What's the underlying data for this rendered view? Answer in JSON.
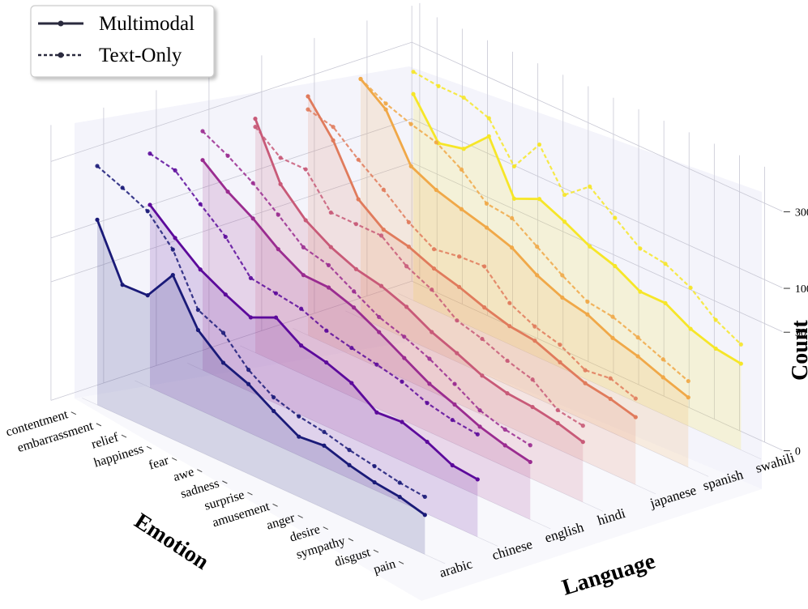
{
  "chart_data": {
    "type": "line",
    "projection": "3d",
    "zscale": "log",
    "xlabel": "Emotion",
    "ylabel": "Language",
    "zlabel": "Count",
    "categories": [
      "contentment",
      "embarrassment",
      "relief",
      "happiness",
      "fear",
      "awe",
      "sadness",
      "surprise",
      "amusement",
      "anger",
      "desire",
      "sympathy",
      "disgust",
      "pain"
    ],
    "languages": [
      "arabic",
      "chinese",
      "english",
      "hindi",
      "japanese",
      "spanish",
      "swahili"
    ],
    "ztick_values": [
      0,
      50,
      100,
      300
    ],
    "ztick_labels": [
      "0",
      "50",
      "100",
      "300"
    ],
    "legend": {
      "position": "top-left",
      "entries": [
        {
          "label": "Multimodal",
          "style": "solid"
        },
        {
          "label": "Text-Only",
          "style": "dashed"
        }
      ]
    },
    "colors": [
      "#1a1a78",
      "#5c0a9b",
      "#9a2c90",
      "#c85a78",
      "#e07b5c",
      "#f0a848",
      "#f6e628"
    ],
    "series": [
      {
        "name": "arabic",
        "multimodal": [
          140,
          62,
          63,
          103,
          52,
          36,
          30,
          22,
          16,
          17,
          14,
          12,
          11,
          9
        ],
        "text_only": [
          300,
          260,
          220,
          150,
          72,
          60,
          39,
          29,
          25,
          23,
          20,
          18,
          16,
          15
        ]
      },
      {
        "name": "chinese",
        "multimodal": [
          135,
          98,
          72,
          58,
          48,
          58,
          44,
          40,
          34,
          24,
          25,
          21,
          16,
          15
        ],
        "text_only": [
          280,
          260,
          190,
          140,
          90,
          85,
          80,
          68,
          62,
          57,
          52,
          44,
          40,
          38
        ]
      },
      {
        "name": "english",
        "multimodal": [
          200,
          150,
          120,
          90,
          72,
          71,
          62,
          50,
          39,
          30,
          25,
          20,
          17,
          15
        ],
        "text_only": [
          300,
          250,
          200,
          150,
          110,
          100,
          80,
          64,
          56,
          47,
          37,
          28,
          24,
          22
        ]
      },
      {
        "name": "hindi",
        "multimodal": [
          280,
          130,
          90,
          71,
          60,
          55,
          47,
          37,
          31,
          25,
          22,
          21,
          19,
          16
        ],
        "text_only": [
          250,
          190,
          190,
          120,
          120,
          120,
          90,
          75,
          55,
          49,
          41,
          36,
          25,
          23
        ]
      },
      {
        "name": "japanese",
        "multimodal": [
          300,
          190,
          95,
          71,
          65,
          55,
          49,
          42,
          37,
          35,
          29,
          24,
          22,
          19
        ],
        "text_only": [
          250,
          230,
          170,
          130,
          95,
          75,
          80,
          82,
          55,
          45,
          40,
          31,
          33,
          28
        ]
      },
      {
        "name": "spanish",
        "multimodal": [
          300,
          230,
          120,
          100,
          89,
          80,
          70,
          54,
          45,
          41,
          33,
          29,
          24,
          20
        ],
        "text_only": [
          300,
          250,
          220,
          200,
          160,
          115,
          110,
          85,
          65,
          51,
          48,
          41,
          34,
          28
        ]
      },
      {
        "name": "swahili",
        "multimodal": [
          190,
          110,
          120,
          170,
          80,
          95,
          80,
          65,
          57,
          45,
          45,
          35,
          30,
          28
        ],
        "text_only": [
          260,
          250,
          250,
          220,
          130,
          210,
          120,
          160,
          120,
          90,
          85,
          70,
          50,
          40
        ]
      }
    ]
  }
}
